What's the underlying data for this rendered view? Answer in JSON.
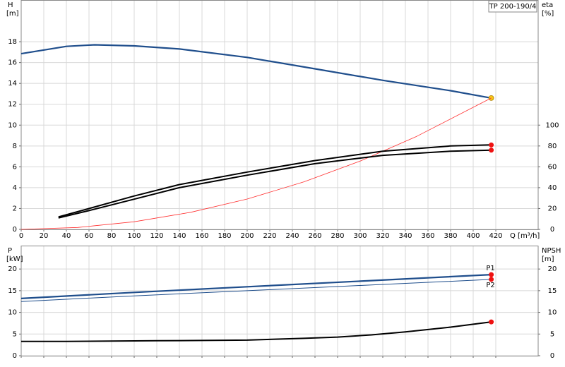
{
  "chart_data": [
    {
      "type": "line",
      "title": "TP 200-190/4",
      "x_label": "Q [m³/h]",
      "y_label": "H",
      "y_unit": "[m]",
      "y2_label": "eta",
      "y2_unit": "[%]",
      "xlim": [
        0,
        457.5
      ],
      "xticks": [
        0,
        20,
        40,
        60,
        80,
        100,
        120,
        140,
        160,
        180,
        200,
        220,
        240,
        260,
        280,
        300,
        320,
        340,
        360,
        380,
        400,
        420
      ],
      "ylim": [
        0,
        22
      ],
      "yticks": [
        0,
        2,
        4,
        6,
        8,
        10,
        12,
        14,
        16,
        18
      ],
      "y2lim": [
        0,
        220
      ],
      "y2ticks": [
        0,
        20,
        40,
        60,
        80,
        100
      ],
      "grid": true,
      "series": [
        {
          "color": "#1f4e8c",
          "marker_color": "#f5c518",
          "x": [
            0,
            40,
            65,
            100,
            140,
            200,
            260,
            320,
            380,
            416
          ],
          "values": [
            16.85,
            17.55,
            17.7,
            17.6,
            17.3,
            16.5,
            15.4,
            14.3,
            13.3,
            12.6
          ]
        },
        {
          "color": "#ff3030",
          "x": [
            0,
            50,
            100,
            150,
            200,
            250,
            300,
            350,
            416
          ],
          "values": [
            0,
            0.18,
            0.73,
            1.64,
            2.91,
            4.55,
            6.55,
            8.92,
            12.6
          ]
        },
        {
          "color": "#000000",
          "marker_color": "#ee1111",
          "axis": "y2",
          "x": [
            33,
            60,
            100,
            140,
            200,
            260,
            320,
            380,
            416
          ],
          "values": [
            12,
            20,
            32,
            43,
            55,
            66,
            75,
            80,
            81
          ]
        },
        {
          "color": "#000000",
          "marker_color": "#ee1111",
          "axis": "y2",
          "x": [
            33,
            60,
            100,
            140,
            200,
            260,
            320,
            380,
            416
          ],
          "values": [
            11,
            18,
            29,
            40,
            52,
            63,
            71,
            75,
            76
          ]
        }
      ]
    },
    {
      "type": "line",
      "y_label": "P",
      "y_unit": "[kW]",
      "y2_label": "NPSH",
      "y2_unit": "[m]",
      "xlim": [
        0,
        457.5
      ],
      "xticks": [
        0,
        20,
        40,
        60,
        80,
        100,
        120,
        140,
        160,
        180,
        200,
        220,
        240,
        260,
        280,
        300,
        320,
        340,
        360,
        380,
        400,
        420
      ],
      "ylim": [
        0,
        25.4
      ],
      "yticks": [
        0,
        5,
        10,
        15,
        20
      ],
      "y2lim": [
        0,
        25.4
      ],
      "y2ticks": [
        0,
        5,
        10,
        15,
        20
      ],
      "grid": true,
      "series": [
        {
          "name": "P1",
          "color": "#1f4e8c",
          "marker_color": "#ee1111",
          "x": [
            0,
            100,
            200,
            300,
            416
          ],
          "values": [
            13.2,
            14.6,
            15.9,
            17.2,
            18.7
          ]
        },
        {
          "name": "P2",
          "color": "#1f4e8c",
          "marker_color": "#ee1111",
          "x": [
            0,
            100,
            200,
            300,
            416
          ],
          "values": [
            12.5,
            13.8,
            15.0,
            16.2,
            17.6
          ]
        },
        {
          "color": "#000000",
          "marker_color": "#ee1111",
          "axis": "y2",
          "x": [
            0,
            40,
            120,
            200,
            250,
            280,
            310,
            340,
            380,
            416
          ],
          "values": [
            3.3,
            3.3,
            3.45,
            3.6,
            4.0,
            4.3,
            4.8,
            5.5,
            6.6,
            7.8
          ]
        }
      ]
    }
  ]
}
